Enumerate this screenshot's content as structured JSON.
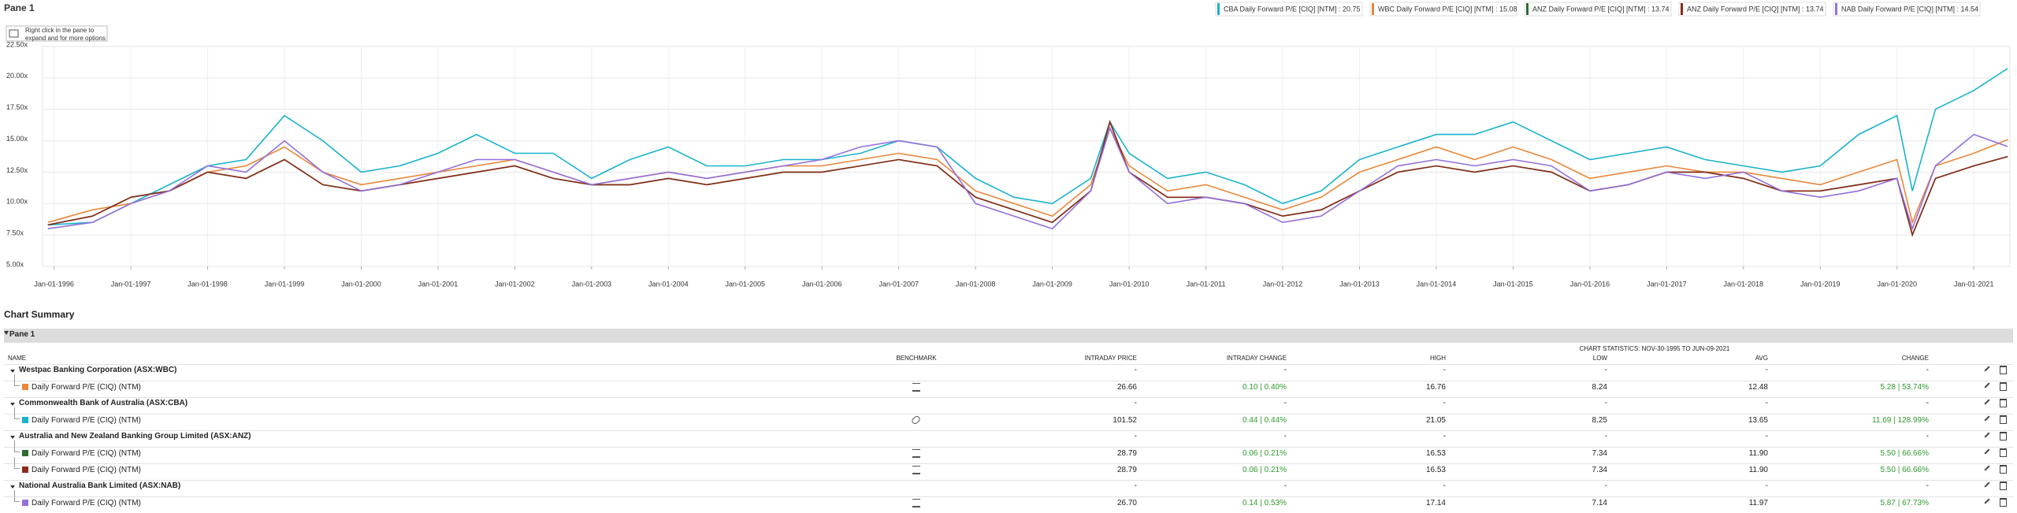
{
  "pane_title": "Pane 1",
  "hint": [
    "Right click in the pane to",
    "expand and for more options"
  ],
  "chart_data": {
    "type": "line",
    "x": [
      1995.92,
      1996.5,
      1997,
      1997.5,
      1998,
      1998.5,
      1999,
      1999.5,
      2000,
      2000.5,
      2001,
      2001.5,
      2002,
      2002.5,
      2003,
      2003.5,
      2004,
      2004.5,
      2005,
      2005.5,
      2006,
      2006.5,
      2007,
      2007.5,
      2008,
      2008.5,
      2009,
      2009.5,
      2009.75,
      2010,
      2010.5,
      2011,
      2011.5,
      2012,
      2012.5,
      2013,
      2013.5,
      2014,
      2014.5,
      2015,
      2015.5,
      2016,
      2016.5,
      2017,
      2017.5,
      2018,
      2018.5,
      2019,
      2019.5,
      2020,
      2020.2,
      2020.5,
      2021,
      2021.44
    ],
    "xlim": [
      1995.85,
      2021.47
    ],
    "xticks": [
      {
        "value": 1996,
        "label": "Jan-01-1996"
      },
      {
        "value": 1997,
        "label": "Jan-01-1997"
      },
      {
        "value": 1998,
        "label": "Jan-01-1998"
      },
      {
        "value": 1999,
        "label": "Jan-01-1999"
      },
      {
        "value": 2000,
        "label": "Jan-01-2000"
      },
      {
        "value": 2001,
        "label": "Jan-01-2001"
      },
      {
        "value": 2002,
        "label": "Jan-01-2002"
      },
      {
        "value": 2003,
        "label": "Jan-01-2003"
      },
      {
        "value": 2004,
        "label": "Jan-01-2004"
      },
      {
        "value": 2005,
        "label": "Jan-01-2005"
      },
      {
        "value": 2006,
        "label": "Jan-01-2006"
      },
      {
        "value": 2007,
        "label": "Jan-01-2007"
      },
      {
        "value": 2008,
        "label": "Jan-01-2008"
      },
      {
        "value": 2009,
        "label": "Jan-01-2009"
      },
      {
        "value": 2010,
        "label": "Jan-01-2010"
      },
      {
        "value": 2011,
        "label": "Jan-01-2011"
      },
      {
        "value": 2012,
        "label": "Jan-01-2012"
      },
      {
        "value": 2013,
        "label": "Jan-01-2013"
      },
      {
        "value": 2014,
        "label": "Jan-01-2014"
      },
      {
        "value": 2015,
        "label": "Jan-01-2015"
      },
      {
        "value": 2016,
        "label": "Jan-01-2016"
      },
      {
        "value": 2017,
        "label": "Jan-01-2017"
      },
      {
        "value": 2018,
        "label": "Jan-01-2018"
      },
      {
        "value": 2019,
        "label": "Jan-01-2019"
      },
      {
        "value": 2020,
        "label": "Jan-01-2020"
      },
      {
        "value": 2021,
        "label": "Jan-01-2021"
      }
    ],
    "ylim": [
      5,
      22.5
    ],
    "yticks": [
      {
        "value": 5,
        "label": "5.00x"
      },
      {
        "value": 7.5,
        "label": "7.50x"
      },
      {
        "value": 10,
        "label": "10.00x"
      },
      {
        "value": 12.5,
        "label": "12.50x"
      },
      {
        "value": 15,
        "label": "15.00x"
      },
      {
        "value": 17.5,
        "label": "17.50x"
      },
      {
        "value": 20,
        "label": "20.00x"
      },
      {
        "value": 22.5,
        "label": "22.50x"
      }
    ],
    "grid": true,
    "series": [
      {
        "name": "CBA Daily Forward P/E [CIQ] [NTM] : 20.75",
        "color": "#1ab3cc",
        "values": [
          8.3,
          8.5,
          10,
          11.5,
          13,
          13.5,
          17,
          15,
          12.5,
          13,
          14,
          15.5,
          14,
          14,
          12,
          13.5,
          14.5,
          13,
          13,
          13.5,
          13.5,
          14,
          15,
          14.5,
          12,
          10.5,
          10,
          12,
          16.5,
          14,
          12,
          12.5,
          11.5,
          10,
          11,
          13.5,
          14.5,
          15.5,
          15.5,
          16.5,
          15,
          13.5,
          14,
          14.5,
          13.5,
          13,
          12.5,
          13,
          15.5,
          17,
          11,
          17.5,
          19,
          20.75
        ]
      },
      {
        "name": "WBC Daily Forward P/E [CIQ] [NTM] : 15.08",
        "color": "#e8883a",
        "values": [
          8.5,
          9.5,
          10,
          11,
          12.5,
          13,
          14.5,
          12.5,
          11.5,
          12,
          12.5,
          13,
          13.5,
          12.5,
          11.5,
          12,
          12.5,
          12,
          12.5,
          13,
          13,
          13.5,
          14,
          13.5,
          11,
          10,
          9,
          11.5,
          16,
          13,
          11,
          11.5,
          10.5,
          9.5,
          10.5,
          12.5,
          13.5,
          14.5,
          13.5,
          14.5,
          13.5,
          12,
          12.5,
          13,
          12.5,
          12.5,
          12,
          11.5,
          12.5,
          13.5,
          8.5,
          13,
          14,
          15.08
        ]
      },
      {
        "name": "ANZ Daily Forward P/E [CIQ] [NTM] : 13.74",
        "color": "#2e6b2e",
        "values": [
          8.3,
          9,
          10.5,
          11,
          12.5,
          12,
          13.5,
          11.5,
          11,
          11.5,
          12,
          12.5,
          13,
          12,
          11.5,
          11.5,
          12,
          11.5,
          12,
          12.5,
          12.5,
          13,
          13.5,
          13,
          10.5,
          9.5,
          8.5,
          11,
          16.5,
          12.5,
          10.5,
          10.5,
          10,
          9,
          9.5,
          11,
          12.5,
          13,
          12.5,
          13,
          12.5,
          11,
          11.5,
          12.5,
          12.5,
          12,
          11,
          11,
          11.5,
          12,
          7.5,
          12,
          13,
          13.74
        ]
      },
      {
        "name": "ANZ Daily Forward P/E [CIQ] [NTM] : 13.74",
        "color": "#8b2b1a",
        "values": [
          8.3,
          9,
          10.5,
          11,
          12.5,
          12,
          13.5,
          11.5,
          11,
          11.5,
          12,
          12.5,
          13,
          12,
          11.5,
          11.5,
          12,
          11.5,
          12,
          12.5,
          12.5,
          13,
          13.5,
          13,
          10.5,
          9.5,
          8.5,
          11,
          16.5,
          12.5,
          10.5,
          10.5,
          10,
          9,
          9.5,
          11,
          12.5,
          13,
          12.5,
          13,
          12.5,
          11,
          11.5,
          12.5,
          12.5,
          12,
          11,
          11,
          11.5,
          12,
          7.5,
          12,
          13,
          13.74
        ]
      },
      {
        "name": "NAB Daily Forward P/E [CIQ] [NTM] : 14.54",
        "color": "#9370db",
        "values": [
          8,
          8.5,
          10,
          11,
          13,
          12.5,
          15,
          12.5,
          11,
          11.5,
          12.5,
          13.5,
          13.5,
          12.5,
          11.5,
          12,
          12.5,
          12,
          12.5,
          13,
          13.5,
          14.5,
          15,
          14.5,
          10,
          9,
          8,
          11,
          16,
          12.5,
          10,
          10.5,
          10,
          8.5,
          9,
          11,
          13,
          13.5,
          13,
          13.5,
          13,
          11,
          11.5,
          12.5,
          12,
          12.5,
          11,
          10.5,
          11,
          12,
          8,
          13,
          15.5,
          14.54
        ]
      }
    ]
  },
  "summary": {
    "title": "Chart Summary",
    "pane": "Pane 1",
    "stats_header": "CHART STATISTICS: NOV-30-1995 TO JUN-09-2021",
    "columns": [
      "NAME",
      "BENCHMARK",
      "INTRADAY PRICE",
      "INTRADAY CHANGE",
      "HIGH",
      "LOW",
      "AVG",
      "CHANGE"
    ],
    "groups": [
      {
        "name": "Westpac Banking Corporation (ASX:WBC)",
        "cells": [
          "-",
          "-",
          "-",
          "-",
          "-",
          "-"
        ],
        "rows": [
          {
            "color": "#e8883a",
            "benchmark": false,
            "cells": [
              "Daily Forward P/E (CIQ) (NTM)",
              "26.66",
              "0.10 | 0.40%",
              "16.76",
              "8.24",
              "12.48",
              "5.28 | 53.74%"
            ]
          }
        ]
      },
      {
        "name": "Commonwealth Bank of Australia (ASX:CBA)",
        "cells": [
          "-",
          "-",
          "-",
          "-",
          "-",
          "-"
        ],
        "rows": [
          {
            "color": "#1ab3cc",
            "benchmark": true,
            "cells": [
              "Daily Forward P/E (CIQ) (NTM)",
              "101.52",
              "0.44 | 0.44%",
              "21.05",
              "8.25",
              "13.65",
              "11.69 | 128.99%"
            ]
          }
        ]
      },
      {
        "name": "Australia and New Zealand Banking Group Limited (ASX:ANZ)",
        "cells": [
          "-",
          "-",
          "-",
          "-",
          "-",
          "-"
        ],
        "rows": [
          {
            "color": "#2e6b2e",
            "benchmark": false,
            "cells": [
              "Daily Forward P/E (CIQ) (NTM)",
              "28.79",
              "0.06 | 0.21%",
              "16.53",
              "7.34",
              "11.90",
              "5.50 | 66.66%"
            ]
          },
          {
            "color": "#8b2b1a",
            "benchmark": false,
            "cells": [
              "Daily Forward P/E (CIQ) (NTM)",
              "28.79",
              "0.06 | 0.21%",
              "16.53",
              "7.34",
              "11.90",
              "5.50 | 66.66%"
            ]
          }
        ]
      },
      {
        "name": "National Australia Bank Limited (ASX:NAB)",
        "cells": [
          "-",
          "-",
          "-",
          "-",
          "-",
          "-"
        ],
        "rows": [
          {
            "color": "#9370db",
            "benchmark": false,
            "cells": [
              "Daily Forward P/E (CIQ) (NTM)",
              "26.70",
              "0.14 | 0.53%",
              "17.14",
              "7.14",
              "11.97",
              "5.87 | 67.73%"
            ]
          }
        ]
      }
    ]
  }
}
